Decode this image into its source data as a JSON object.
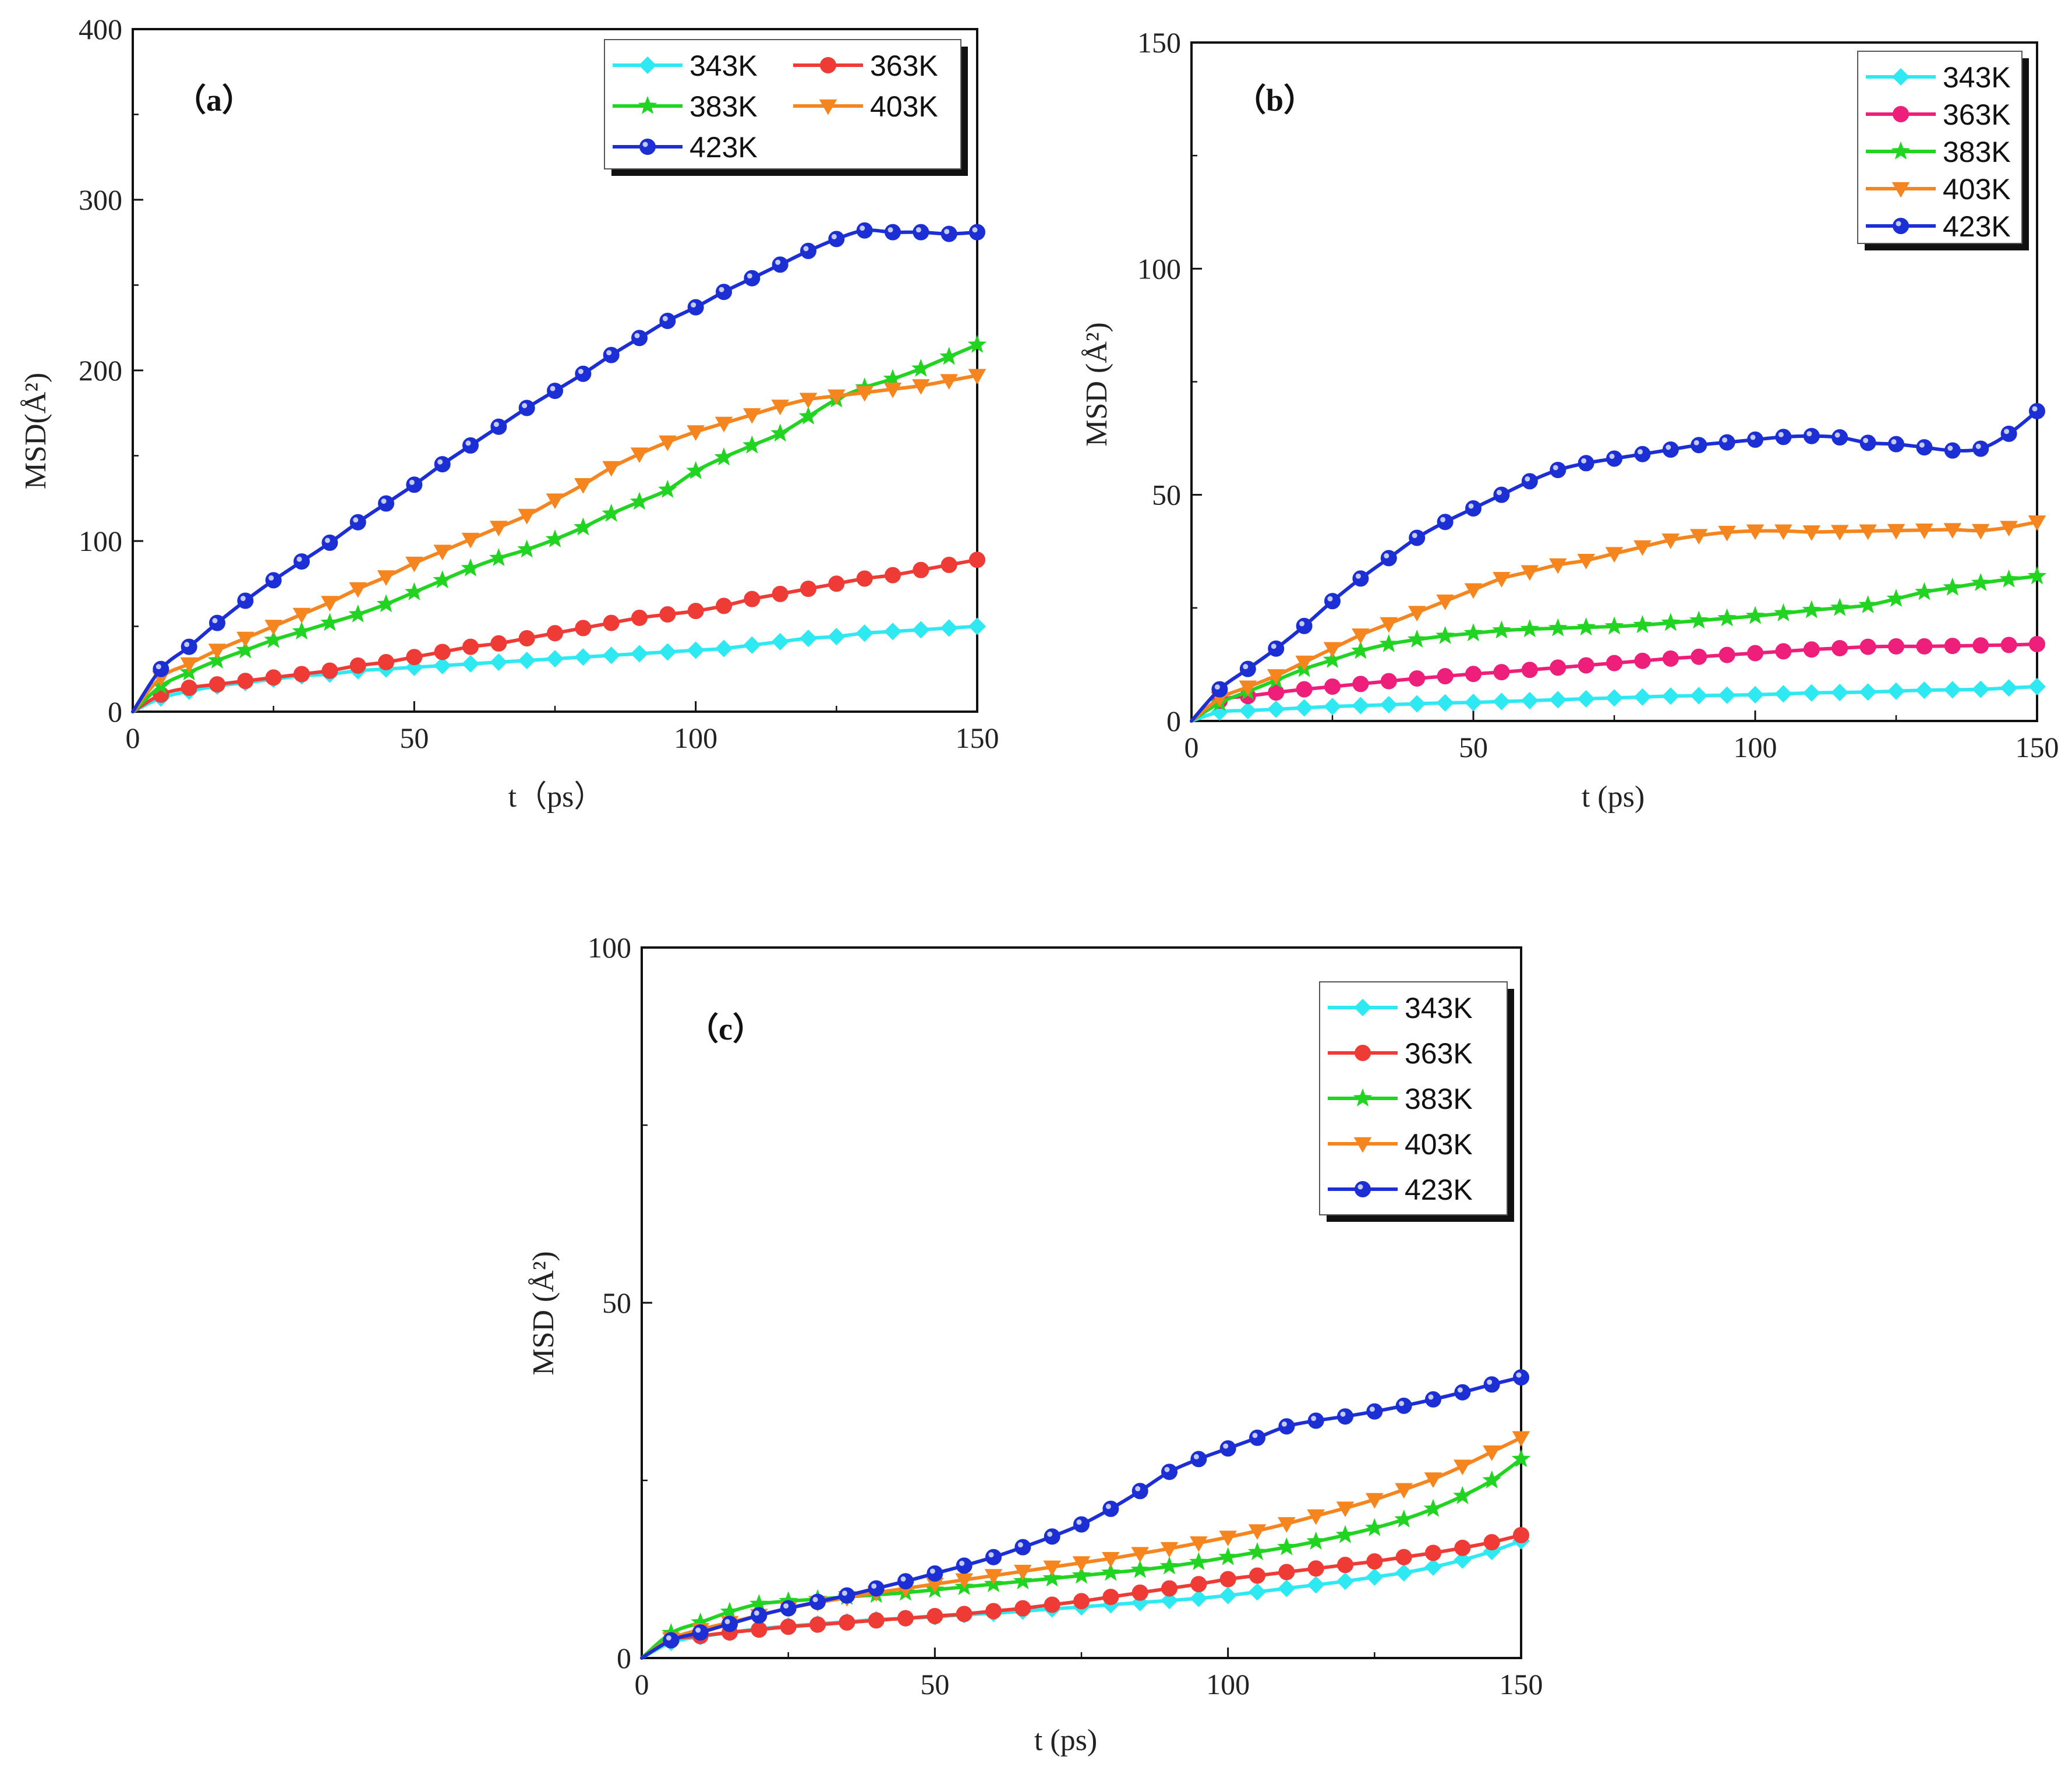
{
  "figure": {
    "series_colors": {
      "343K": "#2ee8f2",
      "363K_a_c": "#ef3b36",
      "363K_b": "#ee1f7a",
      "383K": "#22d422",
      "403K": "#f5851f",
      "423K": "#1b2fd4"
    }
  },
  "chart_data": [
    {
      "type": "line",
      "panel": "(a)",
      "title": "（a）",
      "xlabel": "t（ps）",
      "ylabel": "MSD(Å²)",
      "xlim": [
        0,
        150
      ],
      "ylim": [
        0,
        400
      ],
      "xticks": [
        0,
        50,
        100,
        150
      ],
      "yticks": [
        0,
        100,
        200,
        300,
        400
      ],
      "legend": {
        "position": "top-right",
        "columns": 2
      },
      "x": [
        0,
        5,
        10,
        15,
        20,
        25,
        30,
        35,
        40,
        45,
        50,
        55,
        60,
        65,
        70,
        75,
        80,
        85,
        90,
        95,
        100,
        105,
        110,
        115,
        120,
        125,
        130,
        135,
        140,
        145,
        150
      ],
      "series": [
        {
          "name": "343K",
          "marker": "diamond",
          "values": [
            0,
            8,
            12,
            15,
            17,
            19,
            21,
            22,
            24,
            25,
            26,
            27,
            28,
            29,
            30,
            31,
            32,
            33,
            34,
            35,
            36,
            37,
            39,
            41,
            43,
            44,
            46,
            47,
            48,
            49,
            50
          ]
        },
        {
          "name": "363K",
          "marker": "circle",
          "values": [
            0,
            10,
            14,
            16,
            18,
            20,
            22,
            24,
            27,
            29,
            32,
            35,
            38,
            40,
            43,
            46,
            49,
            52,
            55,
            57,
            59,
            62,
            66,
            69,
            72,
            75,
            78,
            80,
            83,
            86,
            89
          ]
        },
        {
          "name": "383K",
          "marker": "star",
          "values": [
            0,
            15,
            23,
            30,
            36,
            42,
            47,
            52,
            57,
            63,
            70,
            77,
            84,
            90,
            95,
            101,
            108,
            116,
            123,
            130,
            141,
            149,
            156,
            163,
            173,
            183,
            190,
            195,
            201,
            208,
            215
          ]
        },
        {
          "name": "403K",
          "marker": "triangle-down",
          "values": [
            0,
            20,
            28,
            36,
            43,
            50,
            57,
            64,
            72,
            79,
            87,
            94,
            101,
            108,
            115,
            124,
            133,
            143,
            151,
            158,
            164,
            169,
            174,
            179,
            183,
            185,
            187,
            189,
            191,
            194,
            197
          ]
        },
        {
          "name": "423K",
          "marker": "sphere",
          "values": [
            0,
            25,
            38,
            52,
            65,
            77,
            88,
            99,
            111,
            122,
            133,
            145,
            156,
            167,
            178,
            188,
            198,
            209,
            219,
            229,
            237,
            246,
            254,
            262,
            270,
            277,
            282,
            281,
            281,
            280,
            281
          ]
        }
      ]
    },
    {
      "type": "line",
      "panel": "(b)",
      "title": "（b）",
      "xlabel": "t (ps)",
      "ylabel": "MSD (Å²)",
      "xlim": [
        0,
        150
      ],
      "ylim": [
        0,
        150
      ],
      "xticks": [
        0,
        50,
        100,
        150
      ],
      "yticks": [
        0,
        50,
        100,
        150
      ],
      "legend": {
        "position": "top-right",
        "columns": 1
      },
      "x": [
        0,
        5,
        10,
        15,
        20,
        25,
        30,
        35,
        40,
        45,
        50,
        55,
        60,
        65,
        70,
        75,
        80,
        85,
        90,
        95,
        100,
        105,
        110,
        115,
        120,
        125,
        130,
        135,
        140,
        145,
        150
      ],
      "series": [
        {
          "name": "343K",
          "marker": "diamond",
          "values": [
            0,
            2,
            2.3,
            2.6,
            2.9,
            3.2,
            3.4,
            3.6,
            3.8,
            4,
            4.1,
            4.3,
            4.5,
            4.7,
            4.9,
            5.1,
            5.3,
            5.5,
            5.6,
            5.7,
            5.8,
            6,
            6.2,
            6.3,
            6.4,
            6.6,
            6.8,
            6.9,
            7,
            7.3,
            7.6
          ]
        },
        {
          "name": "363K",
          "marker": "circle",
          "values": [
            0,
            4.5,
            5.5,
            6.3,
            7,
            7.6,
            8.2,
            8.8,
            9.4,
            9.9,
            10.4,
            10.8,
            11.3,
            11.8,
            12.3,
            12.8,
            13.3,
            13.8,
            14.2,
            14.6,
            15,
            15.4,
            15.8,
            16.1,
            16.4,
            16.5,
            16.5,
            16.6,
            16.7,
            16.8,
            17
          ]
        },
        {
          "name": "383K",
          "marker": "star",
          "values": [
            0,
            4,
            6.5,
            9,
            11.5,
            13.5,
            15.5,
            17,
            18,
            18.8,
            19.4,
            20,
            20.3,
            20.5,
            20.7,
            20.9,
            21.2,
            21.7,
            22.2,
            22.7,
            23.2,
            23.8,
            24.5,
            25,
            25.6,
            27,
            28.5,
            29.5,
            30.5,
            31.3,
            32
          ]
        },
        {
          "name": "403K",
          "marker": "triangle-down",
          "values": [
            0,
            5,
            7.5,
            10,
            13,
            16,
            19,
            21.5,
            24,
            26.5,
            29,
            31.5,
            33,
            34.5,
            35.5,
            37,
            38.5,
            40,
            41,
            41.7,
            42,
            42,
            41.8,
            41.9,
            42,
            42.1,
            42.2,
            42.3,
            42.1,
            42.8,
            44
          ]
        },
        {
          "name": "423K",
          "marker": "sphere",
          "values": [
            0,
            7,
            11.5,
            16,
            21,
            26.5,
            31.5,
            36,
            40.5,
            44,
            47,
            50,
            53,
            55.5,
            57,
            58,
            59,
            60,
            61,
            61.6,
            62.2,
            62.8,
            63,
            62.7,
            61.5,
            61.2,
            60.5,
            59.8,
            60.2,
            63.5,
            68.5
          ]
        }
      ]
    },
    {
      "type": "line",
      "panel": "(c)",
      "title": "（c）",
      "xlabel": "t (ps)",
      "ylabel": "MSD (Å²)",
      "xlim": [
        0,
        150
      ],
      "ylim": [
        0,
        100
      ],
      "xticks": [
        0,
        50,
        100,
        150
      ],
      "yticks": [
        0,
        50,
        100
      ],
      "legend": {
        "position": "top-right",
        "columns": 1
      },
      "x": [
        0,
        5,
        10,
        15,
        20,
        25,
        30,
        35,
        40,
        45,
        50,
        55,
        60,
        65,
        70,
        75,
        80,
        85,
        90,
        95,
        100,
        105,
        110,
        115,
        120,
        125,
        130,
        135,
        140,
        145,
        150
      ],
      "series": [
        {
          "name": "343K",
          "marker": "diamond",
          "values": [
            0,
            2.2,
            3,
            3.6,
            4.1,
            4.5,
            4.8,
            5.1,
            5.4,
            5.6,
            5.8,
            6.1,
            6.3,
            6.6,
            6.9,
            7.2,
            7.5,
            7.8,
            8.1,
            8.4,
            8.8,
            9.3,
            9.8,
            10.3,
            10.8,
            11.4,
            12,
            12.8,
            13.8,
            15,
            16.5
          ]
        },
        {
          "name": "363K",
          "marker": "circle",
          "values": [
            0,
            2.5,
            3.1,
            3.6,
            4,
            4.4,
            4.7,
            5,
            5.3,
            5.6,
            5.9,
            6.2,
            6.6,
            7,
            7.5,
            8,
            8.6,
            9.2,
            9.8,
            10.4,
            11.1,
            11.6,
            12.1,
            12.6,
            13.1,
            13.6,
            14.2,
            14.8,
            15.5,
            16.3,
            17.3
          ]
        },
        {
          "name": "383K",
          "marker": "star",
          "values": [
            0,
            3.5,
            5,
            6.5,
            7.6,
            8,
            8.3,
            8.6,
            8.9,
            9.2,
            9.6,
            10,
            10.4,
            10.8,
            11.2,
            11.6,
            12,
            12.4,
            12.9,
            13.5,
            14.2,
            14.9,
            15.6,
            16.4,
            17.3,
            18.3,
            19.5,
            21,
            22.8,
            25,
            28
          ]
        },
        {
          "name": "403K",
          "marker": "triangle-down",
          "values": [
            0,
            2.7,
            4,
            5,
            6,
            7,
            7.8,
            8.5,
            9.2,
            9.8,
            10.4,
            11,
            11.6,
            12.2,
            12.8,
            13.4,
            14,
            14.7,
            15.4,
            16.2,
            17,
            17.9,
            18.9,
            20,
            21.1,
            22.3,
            23.7,
            25.2,
            27,
            29,
            31
          ]
        },
        {
          "name": "423K",
          "marker": "sphere",
          "values": [
            0,
            2.5,
            3.6,
            4.8,
            6,
            7,
            7.9,
            8.8,
            9.8,
            10.8,
            11.9,
            13,
            14.2,
            15.6,
            17.1,
            18.8,
            21,
            23.5,
            26.2,
            28,
            29.5,
            31,
            32.6,
            33.4,
            34,
            34.7,
            35.5,
            36.4,
            37.4,
            38.5,
            39.5
          ]
        }
      ]
    }
  ]
}
